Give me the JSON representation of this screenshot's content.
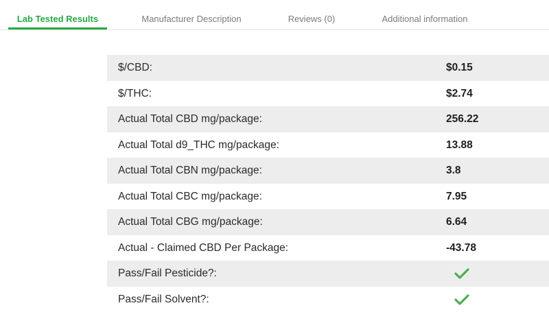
{
  "tabs": [
    {
      "label": "Lab Tested Results",
      "active": true
    },
    {
      "label": "Manufacturer Description",
      "active": false
    },
    {
      "label": "Reviews (0)",
      "active": false
    },
    {
      "label": "Additional information",
      "active": false
    }
  ],
  "results": [
    {
      "label": "$/CBD:",
      "value": "$0.15"
    },
    {
      "label": "$/THC:",
      "value": "$2.74"
    },
    {
      "label": "Actual Total CBD mg/package:",
      "value": "256.22"
    },
    {
      "label": "Actual Total d9_THC mg/package:",
      "value": "13.88"
    },
    {
      "label": "Actual Total CBN mg/package:",
      "value": "3.8"
    },
    {
      "label": "Actual Total CBC mg/package:",
      "value": "7.95"
    },
    {
      "label": "Actual Total CBG mg/package:",
      "value": "6.64"
    },
    {
      "label": "Actual - Claimed CBD Per Package:",
      "value": "-43.78"
    },
    {
      "label": "Pass/Fail Pesticide?:",
      "value_icon": "checkmark-icon",
      "status": "pass"
    },
    {
      "label": "Pass/Fail Solvent?:",
      "value_icon": "checkmark-icon",
      "status": "pass"
    }
  ],
  "colors": {
    "accent": "#27a844",
    "row_shade": "#ededee",
    "check": "#4caf50"
  }
}
